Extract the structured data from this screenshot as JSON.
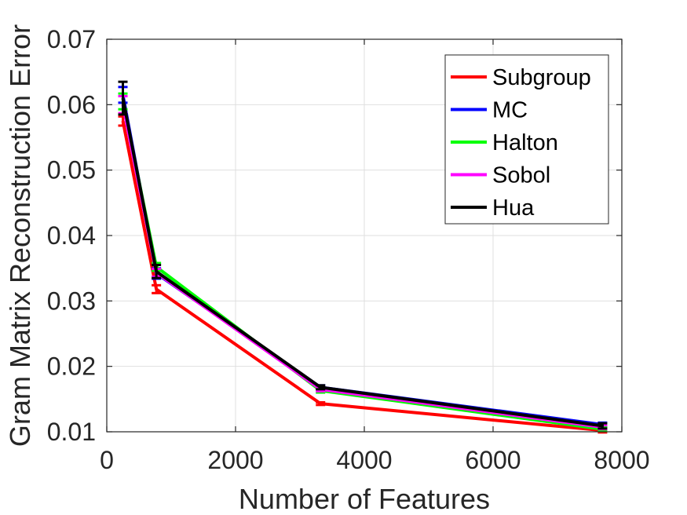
{
  "chart_data": {
    "type": "line",
    "xlabel": "Number of Features",
    "ylabel": "Gram Matrix Reconstruction Error",
    "xlim": [
      0,
      8000
    ],
    "ylim": [
      0.01,
      0.07
    ],
    "xticks": [
      0,
      2000,
      4000,
      6000,
      8000
    ],
    "xtick_labels": [
      "0",
      "2000",
      "4000",
      "6000",
      "8000"
    ],
    "yticks": [
      0.01,
      0.02,
      0.03,
      0.04,
      0.05,
      0.06,
      0.07
    ],
    "ytick_labels": [
      "0.01",
      "0.02",
      "0.03",
      "0.04",
      "0.05",
      "0.06",
      "0.07"
    ],
    "grid": true,
    "legend_position": "top-right",
    "x": [
      250,
      770,
      3320,
      7700
    ],
    "series": [
      {
        "name": "Subgroup",
        "color": "#ff0000",
        "values": [
          0.0575,
          0.0318,
          0.0143,
          0.0102
        ],
        "err": [
          0.0007,
          0.0006,
          0.0002,
          0.0003
        ]
      },
      {
        "name": "MC",
        "color": "#0000ff",
        "values": [
          0.0615,
          0.0342,
          0.0168,
          0.0111
        ],
        "err": [
          0.0012,
          0.0008,
          0.0003,
          0.0003
        ]
      },
      {
        "name": "Halton",
        "color": "#00ff00",
        "values": [
          0.0605,
          0.0352,
          0.0163,
          0.0104
        ],
        "err": [
          0.0012,
          0.0006,
          0.0003,
          0.0003
        ]
      },
      {
        "name": "Sobol",
        "color": "#ff00ff",
        "values": [
          0.06,
          0.0343,
          0.0165,
          0.0107
        ],
        "err": [
          0.0013,
          0.0006,
          0.0003,
          0.0003
        ]
      },
      {
        "name": "Hua",
        "color": "#000000",
        "values": [
          0.061,
          0.0345,
          0.0168,
          0.0109
        ],
        "err": [
          0.0025,
          0.001,
          0.0003,
          0.0004
        ]
      }
    ]
  }
}
